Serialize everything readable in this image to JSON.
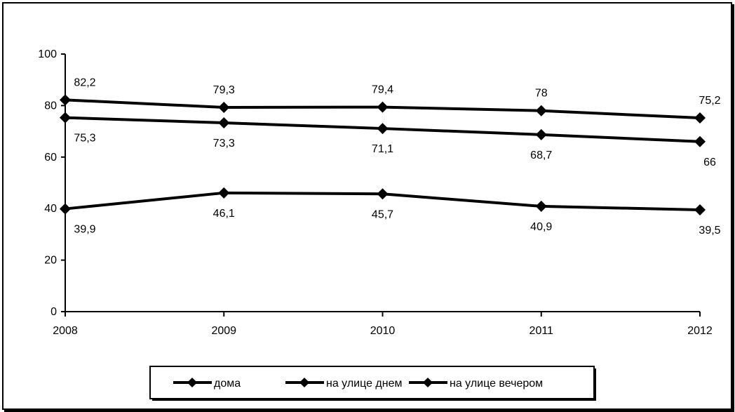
{
  "chart_data": {
    "type": "line",
    "x": [
      "2008",
      "2009",
      "2010",
      "2011",
      "2012"
    ],
    "ylim": [
      0,
      100
    ],
    "y_ticks": [
      "0",
      "20",
      "40",
      "60",
      "80",
      "100"
    ],
    "grid": false,
    "legend_position": "bottom",
    "series": [
      {
        "name": "дома",
        "values": [
          82.2,
          79.3,
          79.4,
          78,
          75.2
        ],
        "labels": [
          "82,2",
          "79,3",
          "79,4",
          "78",
          "75,2"
        ],
        "label_placement": "above"
      },
      {
        "name": "на улице днем",
        "values": [
          75.3,
          73.3,
          71.1,
          68.7,
          66
        ],
        "labels": [
          "75,3",
          "73,3",
          "71,1",
          "68,7",
          "66"
        ],
        "label_placement": "below"
      },
      {
        "name": "на улице вечером",
        "values": [
          39.9,
          46.1,
          45.7,
          40.9,
          39.5
        ],
        "labels": [
          "39,9",
          "46,1",
          "45,7",
          "40,9",
          "39,5"
        ],
        "label_placement": "below"
      }
    ],
    "colors": {
      "line": "#000000",
      "marker": "#000000"
    }
  }
}
